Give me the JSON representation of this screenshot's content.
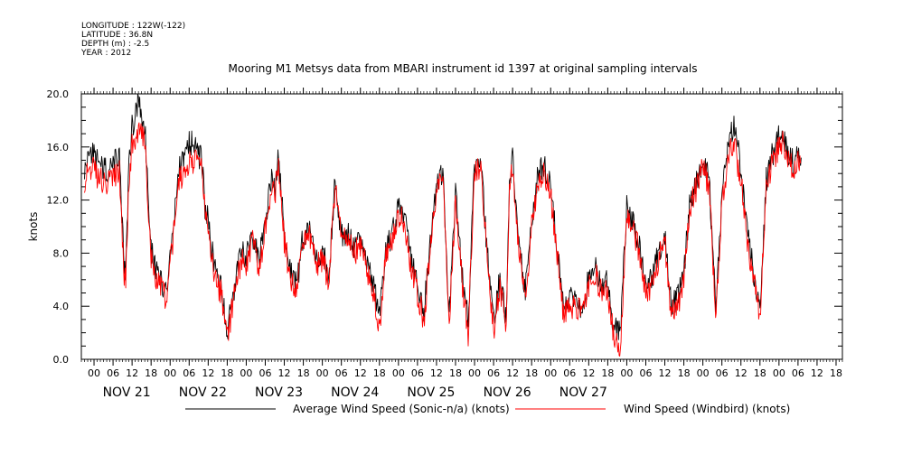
{
  "header": {
    "meta_lines": [
      "LONGITUDE : 122W(-122)",
      "LATITUDE : 36.8N",
      "DEPTH (m) : -2.5",
      "YEAR : 2012"
    ],
    "title": "Mooring M1 Metsys data from MBARI instrument id 1397 at original sampling intervals"
  },
  "chart_data": {
    "type": "line",
    "title": "Mooring M1 Metsys data from MBARI instrument id 1397 at original sampling intervals",
    "ylabel": "knots",
    "xlabel": "",
    "ylim": [
      0,
      20
    ],
    "yticks": [
      "0.0",
      "4.0",
      "8.0",
      "12.0",
      "16.0",
      "20.0"
    ],
    "xlim_hours": [
      -4,
      236
    ],
    "hour_tick_labels": [
      "00",
      "06",
      "12",
      "18"
    ],
    "day_labels": [
      "NOV 21",
      "NOV 22",
      "NOV 23",
      "NOV 24",
      "NOV 25",
      "NOV 26",
      "NOV 27"
    ],
    "series": [
      {
        "name": "Average Wind Speed (Sonic-n/a) (knots)",
        "color": "#000000",
        "x": [
          -3,
          -1,
          2,
          5,
          8,
          9.5,
          10,
          11,
          12,
          14,
          16,
          18,
          20,
          23,
          26,
          27,
          29,
          30,
          32,
          34,
          35,
          36,
          38,
          40,
          42,
          44,
          46,
          47,
          48,
          50,
          52,
          54,
          56,
          57,
          58,
          60,
          62,
          64,
          66,
          68,
          70,
          72,
          74,
          76,
          78,
          80,
          82,
          84,
          86,
          88,
          90,
          92,
          94,
          96,
          98,
          100,
          102,
          104,
          106,
          108,
          110,
          112,
          114,
          116,
          118,
          120,
          122,
          124,
          126,
          128,
          130,
          131,
          132,
          134,
          136,
          138,
          140,
          142,
          144,
          146,
          148,
          150,
          152,
          154,
          156,
          158,
          160,
          162,
          164,
          166,
          168,
          170,
          172,
          174,
          176,
          178,
          180,
          182,
          184,
          186,
          188,
          190,
          192,
          194,
          196,
          198,
          200,
          202,
          204,
          206,
          208,
          210,
          212,
          214,
          215.5,
          217,
          218,
          220,
          221,
          222,
          223
        ],
        "values": [
          14.2,
          15.8,
          14.5,
          14.2,
          15.5,
          6.8,
          6.5,
          14.2,
          17.5,
          19.5,
          17.5,
          8.2,
          6.5,
          5.0,
          12.5,
          14.5,
          15.2,
          16.5,
          15.8,
          15.0,
          11.5,
          10.5,
          6.8,
          5.5,
          2.0,
          5.0,
          7.5,
          8.5,
          7.5,
          9.5,
          7.2,
          10.5,
          13.5,
          12.8,
          15.5,
          9.5,
          6.5,
          5.5,
          9.5,
          10.0,
          7.5,
          8.0,
          6.5,
          13.5,
          9.5,
          9.5,
          8.5,
          9.0,
          7.5,
          5.5,
          3.5,
          8.0,
          9.5,
          11.5,
          10.5,
          7.5,
          5.5,
          3.5,
          8.5,
          13.5,
          14.0,
          3.0,
          12.5,
          6.5,
          3.0,
          14.5,
          15.0,
          8.0,
          3.0,
          6.0,
          3.0,
          13.5,
          15.0,
          8.5,
          5.0,
          10.5,
          14.2,
          14.5,
          13.0,
          8.5,
          4.0,
          4.5,
          4.2,
          4.0,
          6.0,
          7.0,
          5.5,
          5.8,
          2.2,
          2.5,
          11.5,
          10.5,
          8.5,
          5.5,
          6.0,
          8.0,
          9.5,
          4.0,
          4.5,
          6.5,
          12.0,
          13.5,
          15.0,
          13.5,
          4.0,
          12.0,
          16.5,
          17.5,
          14.2,
          9.5,
          6.5,
          3.5,
          13.5,
          15.5,
          16.5,
          17.2,
          16.0,
          15.0,
          14.5,
          15.5,
          15.2
        ],
        "noise": 1.0
      },
      {
        "name": "Wind Speed (Windbird) (knots)",
        "color": "#ff0000",
        "x": [
          -3,
          -1,
          2,
          5,
          8,
          9.5,
          10,
          11,
          12,
          14,
          16,
          18,
          20,
          23,
          26,
          27,
          29,
          30,
          32,
          34,
          35,
          36,
          38,
          40,
          42,
          44,
          46,
          47,
          48,
          50,
          52,
          54,
          56,
          57,
          58,
          60,
          62,
          64,
          66,
          68,
          70,
          72,
          74,
          76,
          78,
          80,
          82,
          84,
          86,
          88,
          90,
          92,
          94,
          96,
          98,
          100,
          102,
          104,
          106,
          108,
          110,
          112,
          114,
          116,
          118,
          120,
          122,
          124,
          126,
          128,
          130,
          131,
          132,
          134,
          136,
          138,
          140,
          142,
          144,
          146,
          148,
          150,
          152,
          154,
          156,
          158,
          160,
          162,
          164,
          166,
          168,
          170,
          172,
          174,
          176,
          178,
          180,
          182,
          184,
          186,
          188,
          190,
          192,
          194,
          196,
          198,
          200,
          202,
          204,
          206,
          208,
          210,
          212,
          214,
          215.5,
          217,
          218,
          220,
          221,
          222,
          223
        ],
        "values": [
          13.5,
          14.5,
          13.5,
          13.2,
          14.2,
          6.0,
          6.0,
          13.5,
          16.2,
          17.0,
          16.5,
          7.5,
          6.0,
          4.5,
          11.8,
          13.5,
          14.2,
          15.2,
          14.8,
          14.2,
          11.0,
          9.8,
          6.0,
          5.0,
          1.5,
          4.5,
          7.0,
          8.0,
          7.0,
          9.0,
          6.8,
          9.8,
          13.0,
          12.2,
          14.8,
          9.0,
          6.0,
          5.0,
          9.0,
          9.5,
          7.0,
          7.5,
          6.0,
          13.0,
          9.0,
          9.0,
          8.0,
          8.5,
          7.0,
          5.0,
          2.5,
          7.5,
          9.0,
          11.0,
          10.0,
          7.0,
          5.0,
          3.0,
          8.0,
          13.0,
          13.5,
          2.5,
          12.0,
          6.0,
          2.0,
          14.0,
          14.5,
          7.5,
          2.0,
          5.5,
          2.5,
          13.0,
          14.5,
          8.0,
          4.5,
          10.0,
          13.5,
          14.0,
          12.5,
          8.0,
          3.5,
          4.0,
          3.8,
          3.5,
          5.5,
          6.5,
          5.0,
          5.2,
          1.5,
          0.8,
          11.0,
          10.0,
          8.0,
          5.0,
          5.5,
          7.5,
          9.0,
          3.5,
          4.0,
          6.0,
          11.5,
          13.0,
          14.5,
          13.0,
          3.5,
          11.5,
          15.5,
          16.0,
          13.5,
          9.0,
          6.0,
          3.0,
          13.0,
          15.0,
          15.8,
          16.5,
          15.5,
          14.5,
          14.0,
          15.0,
          14.8
        ],
        "noise": 1.0
      }
    ],
    "legend_position": "bottom"
  }
}
